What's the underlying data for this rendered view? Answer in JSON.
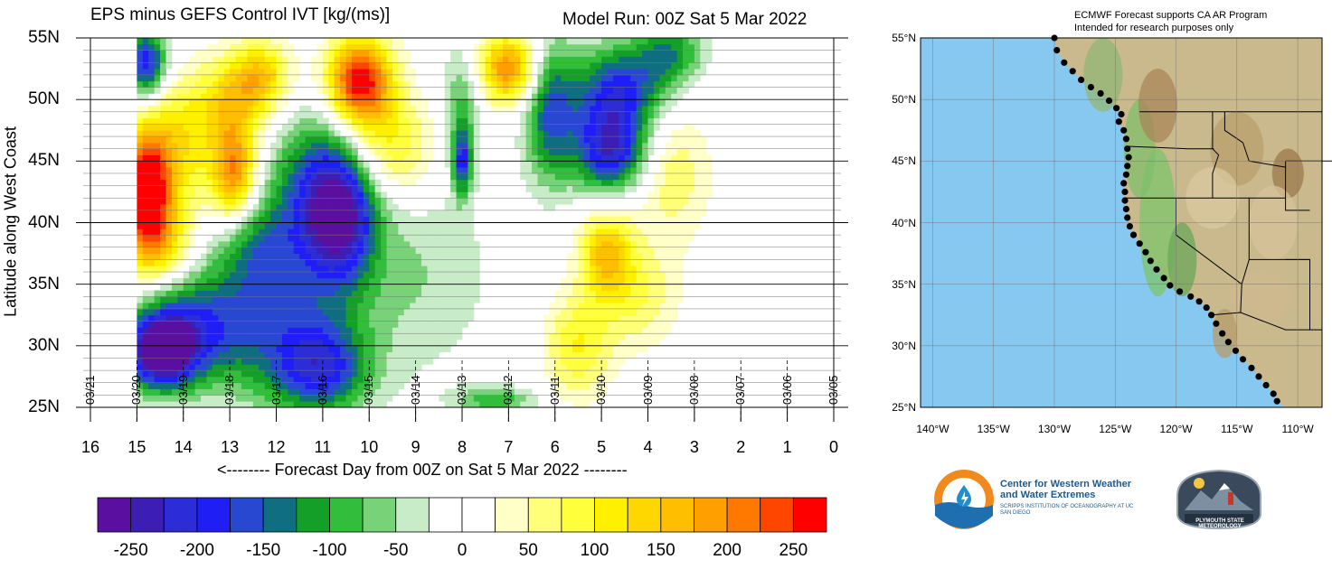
{
  "title": "EPS minus GEFS Control IVT [kg/(ms)]",
  "model_run": "Model Run: 00Z Sat 5 Mar 2022",
  "ylabel": "Latitude along West Coast",
  "xlabel": "<-------- Forecast Day from 00Z on Sat 5 Mar 2022 --------",
  "map_note_line1": "ECMWF Forecast supports CA AR Program",
  "map_note_line2": "Intended for research purposes only",
  "logos": {
    "cw3e_name": "Center for Western Weather and Water Extremes",
    "cw3e_sub": "SCRIPPS INSTITUTION OF OCEANOGRAPHY AT UC SAN DIEGO",
    "psu_name": "PLYMOUTH STATE METEOROLOGY"
  },
  "colors": {
    "ocean": "#86c8f0",
    "coast_dots": "#000000"
  },
  "chart_data": [
    {
      "type": "heatmap",
      "title": "EPS minus GEFS Control IVT [kg/(ms)]",
      "xlabel": "<-------- Forecast Day from 00Z on Sat 5 Mar 2022 --------",
      "ylabel": "Latitude along West Coast",
      "x_ticks": [
        "16",
        "15",
        "14",
        "13",
        "12",
        "11",
        "10",
        "9",
        "8",
        "7",
        "6",
        "5",
        "4",
        "3",
        "2",
        "1",
        "0"
      ],
      "xlim": [
        16,
        0
      ],
      "date_labels": [
        "03/21",
        "03/20",
        "03/19",
        "03/18",
        "03/17",
        "03/16",
        "03/15",
        "03/14",
        "03/13",
        "03/12",
        "03/11",
        "03/10",
        "03/09",
        "03/08",
        "03/07",
        "03/06",
        "03/05"
      ],
      "y_ticks": [
        "25N",
        "30N",
        "35N",
        "40N",
        "45N",
        "50N"
      ],
      "y_top_label": "55N",
      "ylim": [
        25,
        55
      ],
      "colorbar": {
        "ticks": [
          -250,
          -200,
          -150,
          -100,
          -50,
          0,
          50,
          100,
          150,
          200,
          250
        ],
        "levels": [
          -275,
          -250,
          -225,
          -200,
          -175,
          -150,
          -125,
          -100,
          -75,
          -50,
          -25,
          0,
          25,
          50,
          75,
          100,
          125,
          150,
          175,
          200,
          225,
          250,
          275
        ],
        "colors": [
          "#5a0fa0",
          "#3c1eb4",
          "#2d2dd7",
          "#1e1ef5",
          "#2848d2",
          "#0f6e80",
          "#14a028",
          "#32be3c",
          "#78d278",
          "#c8ebc8",
          "#ffffff",
          "#ffffff",
          "#ffffc8",
          "#ffff78",
          "#ffff3c",
          "#fff000",
          "#ffd700",
          "#ffbe00",
          "#ffa000",
          "#ff7800",
          "#ff4600",
          "#ff0000"
        ]
      },
      "features": [
        {
          "day": 14.8,
          "lat": 43.0,
          "value": 250,
          "sd": 0.35,
          "sl": 3.0
        },
        {
          "day": 14.6,
          "lat": 38.5,
          "value": 160,
          "sd": 0.5,
          "sl": 2.5
        },
        {
          "day": 14.2,
          "lat": 46.0,
          "value": 120,
          "sd": 0.6,
          "sl": 3.5
        },
        {
          "day": 12.9,
          "lat": 44.0,
          "value": 200,
          "sd": 0.35,
          "sl": 3.0
        },
        {
          "day": 13.0,
          "lat": 50.0,
          "value": 110,
          "sd": 0.6,
          "sl": 2.5
        },
        {
          "day": 12.3,
          "lat": 52.0,
          "value": 130,
          "sd": 0.45,
          "sl": 2.0
        },
        {
          "day": 10.2,
          "lat": 51.5,
          "value": 275,
          "sd": 0.5,
          "sl": 2.5
        },
        {
          "day": 9.6,
          "lat": 46.0,
          "value": 110,
          "sd": 0.7,
          "sl": 3.0
        },
        {
          "day": 7.0,
          "lat": 52.5,
          "value": 200,
          "sd": 0.45,
          "sl": 2.0
        },
        {
          "day": 4.9,
          "lat": 37.5,
          "value": 150,
          "sd": 0.4,
          "sl": 2.5
        },
        {
          "day": 4.2,
          "lat": 34.0,
          "value": 70,
          "sd": 0.6,
          "sl": 3.0
        },
        {
          "day": 5.5,
          "lat": 30.0,
          "value": 100,
          "sd": 0.5,
          "sl": 3.0
        },
        {
          "day": 3.5,
          "lat": 44.0,
          "value": 70,
          "sd": 0.6,
          "sl": 4.0
        },
        {
          "day": 14.8,
          "lat": 53.0,
          "value": -200,
          "sd": 0.3,
          "sl": 2.0
        },
        {
          "day": 14.5,
          "lat": 29.5,
          "value": -275,
          "sd": 0.5,
          "sl": 2.0
        },
        {
          "day": 13.9,
          "lat": 31.5,
          "value": -150,
          "sd": 0.8,
          "sl": 3.0
        },
        {
          "day": 12.0,
          "lat": 31.0,
          "value": -120,
          "sd": 1.1,
          "sl": 4.0
        },
        {
          "day": 12.5,
          "lat": 38.0,
          "value": -110,
          "sd": 0.6,
          "sl": 3.0
        },
        {
          "day": 11.3,
          "lat": 42.0,
          "value": -120,
          "sd": 0.7,
          "sl": 5.0
        },
        {
          "day": 10.6,
          "lat": 41.0,
          "value": -230,
          "sd": 0.55,
          "sl": 4.0
        },
        {
          "day": 11.0,
          "lat": 28.0,
          "value": -150,
          "sd": 0.7,
          "sl": 2.5
        },
        {
          "day": 9.0,
          "lat": 36.0,
          "value": -50,
          "sd": 1.2,
          "sl": 6.0
        },
        {
          "day": 8.0,
          "lat": 45.0,
          "value": -170,
          "sd": 0.15,
          "sl": 2.0
        },
        {
          "day": 8.0,
          "lat": 50.0,
          "value": -80,
          "sd": 0.3,
          "sl": 3.0
        },
        {
          "day": 6.1,
          "lat": 49.0,
          "value": -150,
          "sd": 0.4,
          "sl": 4.0
        },
        {
          "day": 4.8,
          "lat": 46.0,
          "value": -220,
          "sd": 0.55,
          "sl": 2.5
        },
        {
          "day": 4.6,
          "lat": 51.0,
          "value": -170,
          "sd": 0.7,
          "sl": 2.5
        },
        {
          "day": 3.5,
          "lat": 54.0,
          "value": -110,
          "sd": 0.5,
          "sl": 2.0
        },
        {
          "day": 7.3,
          "lat": 25.6,
          "value": -90,
          "sd": 0.6,
          "sl": 0.8
        }
      ]
    },
    {
      "type": "map",
      "title": "ECMWF Forecast supports CA AR Program",
      "x_ticks": [
        "140°W",
        "135°W",
        "130°W",
        "125°W",
        "120°W",
        "115°W",
        "110°W"
      ],
      "lon_values": [
        -140,
        -135,
        -130,
        -125,
        -120,
        -115,
        -110
      ],
      "xlim": [
        -141,
        -108
      ],
      "y_ticks": [
        "25°N",
        "30°N",
        "35°N",
        "40°N",
        "45°N",
        "50°N",
        "55°N"
      ],
      "lat_values": [
        25,
        30,
        35,
        40,
        45,
        50,
        55
      ],
      "ylim": [
        25,
        55
      ],
      "coast_points": [
        [
          -130.0,
          55.0
        ],
        [
          -129.8,
          54.0
        ],
        [
          -129.2,
          53.0
        ],
        [
          -128.5,
          52.3
        ],
        [
          -127.8,
          51.6
        ],
        [
          -127.0,
          51.0
        ],
        [
          -126.2,
          50.5
        ],
        [
          -125.5,
          49.9
        ],
        [
          -124.9,
          49.3
        ],
        [
          -124.5,
          48.8
        ],
        [
          -124.7,
          48.2
        ],
        [
          -124.3,
          47.5
        ],
        [
          -124.1,
          46.8
        ],
        [
          -124.0,
          46.0
        ],
        [
          -123.9,
          45.3
        ],
        [
          -124.0,
          44.6
        ],
        [
          -124.1,
          43.9
        ],
        [
          -124.3,
          43.2
        ],
        [
          -124.2,
          42.5
        ],
        [
          -124.2,
          41.8
        ],
        [
          -124.1,
          41.1
        ],
        [
          -124.0,
          40.4
        ],
        [
          -123.8,
          39.7
        ],
        [
          -123.5,
          39.0
        ],
        [
          -123.0,
          38.3
        ],
        [
          -122.5,
          37.6
        ],
        [
          -122.1,
          36.9
        ],
        [
          -121.6,
          36.2
        ],
        [
          -121.0,
          35.5
        ],
        [
          -120.5,
          34.9
        ],
        [
          -119.7,
          34.4
        ],
        [
          -118.8,
          34.0
        ],
        [
          -118.1,
          33.6
        ],
        [
          -117.5,
          33.1
        ],
        [
          -117.1,
          32.5
        ],
        [
          -116.7,
          31.8
        ],
        [
          -116.2,
          31.0
        ],
        [
          -115.7,
          30.3
        ],
        [
          -115.1,
          29.6
        ],
        [
          -114.5,
          28.9
        ],
        [
          -113.8,
          28.2
        ],
        [
          -113.2,
          27.5
        ],
        [
          -112.6,
          26.8
        ],
        [
          -112.0,
          26.1
        ],
        [
          -111.7,
          25.5
        ]
      ]
    }
  ]
}
